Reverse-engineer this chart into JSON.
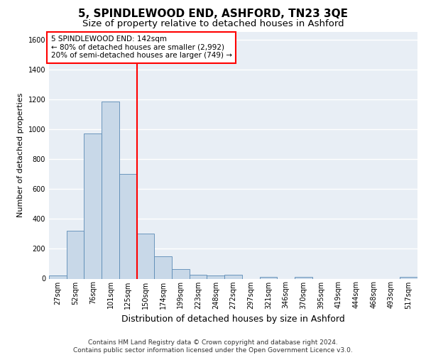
{
  "title": "5, SPINDLEWOOD END, ASHFORD, TN23 3QE",
  "subtitle": "Size of property relative to detached houses in Ashford",
  "xlabel": "Distribution of detached houses by size in Ashford",
  "ylabel": "Number of detached properties",
  "categories": [
    "27sqm",
    "52sqm",
    "76sqm",
    "101sqm",
    "125sqm",
    "150sqm",
    "174sqm",
    "199sqm",
    "223sqm",
    "248sqm",
    "272sqm",
    "297sqm",
    "321sqm",
    "346sqm",
    "370sqm",
    "395sqm",
    "419sqm",
    "444sqm",
    "468sqm",
    "493sqm",
    "517sqm"
  ],
  "values": [
    20,
    320,
    970,
    1185,
    700,
    300,
    150,
    65,
    25,
    20,
    25,
    0,
    10,
    0,
    10,
    0,
    0,
    0,
    0,
    0,
    10
  ],
  "bar_color": "#c8d8e8",
  "bar_edge_color": "#5a8ab5",
  "vline_color": "red",
  "annotation_text": "5 SPINDLEWOOD END: 142sqm\n← 80% of detached houses are smaller (2,992)\n20% of semi-detached houses are larger (749) →",
  "annotation_box_color": "white",
  "annotation_box_edge": "red",
  "ylim": [
    0,
    1650
  ],
  "yticks": [
    0,
    200,
    400,
    600,
    800,
    1000,
    1200,
    1400,
    1600
  ],
  "background_color": "#e8eef5",
  "grid_color": "white",
  "footer": "Contains HM Land Registry data © Crown copyright and database right 2024.\nContains public sector information licensed under the Open Government Licence v3.0.",
  "title_fontsize": 11,
  "subtitle_fontsize": 9.5,
  "xlabel_fontsize": 9,
  "ylabel_fontsize": 8,
  "tick_fontsize": 7,
  "annotation_fontsize": 7.5,
  "footer_fontsize": 6.5
}
